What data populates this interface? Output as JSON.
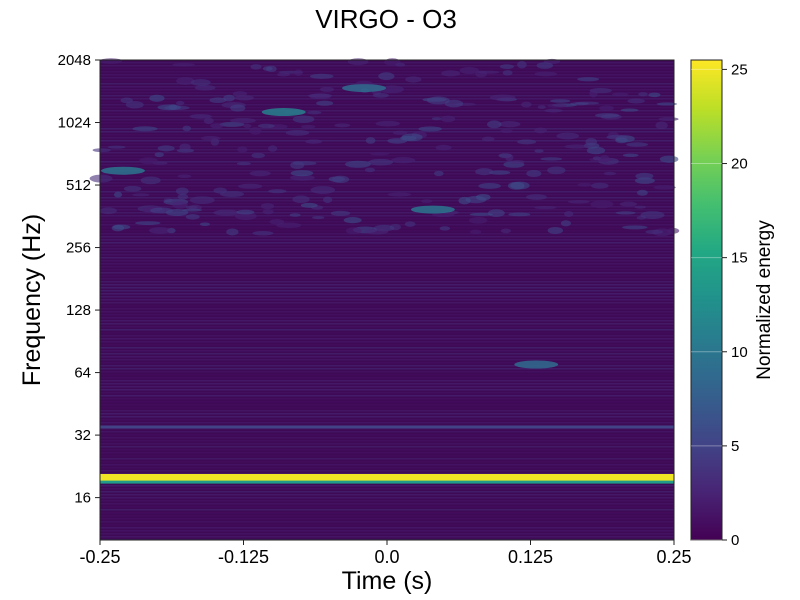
{
  "chart_data": {
    "type": "heatmap",
    "title": "VIRGO - O3",
    "xlabel": "Time (s)",
    "ylabel": "Frequency (Hz)",
    "xlim": [
      -0.25,
      0.25
    ],
    "ylim": [
      10,
      2048
    ],
    "yscale": "log2",
    "x_ticks": [
      "-0.25",
      "-0.125",
      "0.0",
      "0.125",
      "0.25"
    ],
    "x_tick_values": [
      -0.25,
      -0.125,
      0.0,
      0.125,
      0.25
    ],
    "y_ticks": [
      "16",
      "32",
      "64",
      "128",
      "256",
      "512",
      "1024",
      "2048"
    ],
    "y_tick_values": [
      16,
      32,
      64,
      128,
      256,
      512,
      1024,
      2048
    ],
    "colorbar": {
      "label": "Normalized energy",
      "range": [
        0,
        25.5
      ],
      "ticks": [
        "0",
        "5",
        "10",
        "15",
        "20",
        "25"
      ],
      "tick_values": [
        0,
        5,
        10,
        15,
        20,
        25
      ],
      "colormap": "viridis"
    },
    "features": [
      {
        "kind": "horizontal-line",
        "frequency": 20,
        "energy": 25
      },
      {
        "kind": "horizontal-line",
        "frequency": 19,
        "energy": 14
      },
      {
        "kind": "horizontal-line",
        "frequency": 35,
        "energy": 5
      },
      {
        "kind": "blob",
        "time": 0.13,
        "frequency": 70,
        "energy": 9
      },
      {
        "kind": "blob",
        "time": 0.04,
        "frequency": 390,
        "energy": 10
      },
      {
        "kind": "blob",
        "time": -0.23,
        "frequency": 600,
        "energy": 10
      },
      {
        "kind": "blob",
        "time": -0.09,
        "frequency": 1150,
        "energy": 11
      },
      {
        "kind": "blob",
        "time": -0.02,
        "frequency": 1500,
        "energy": 9
      }
    ]
  }
}
